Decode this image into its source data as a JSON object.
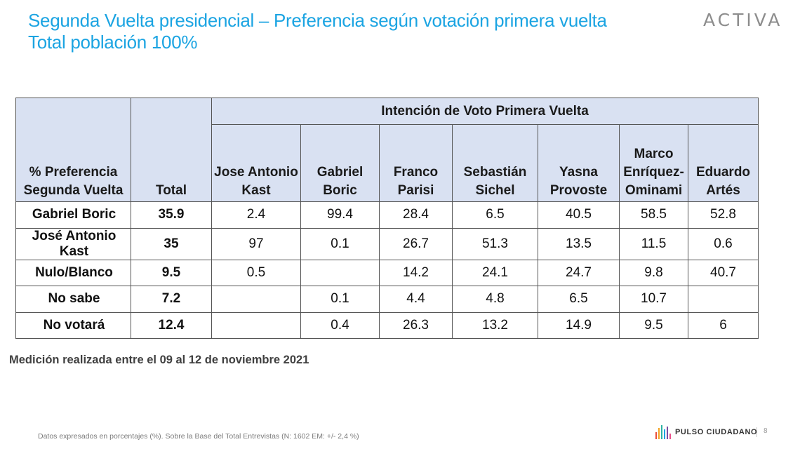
{
  "header": {
    "title_line1": "Segunda Vuelta presidencial – Preferencia según votación primera vuelta",
    "title_line2": "Total población 100%",
    "logo": "ACTIVA"
  },
  "table": {
    "row_header": "% Preferencia Segunda Vuelta",
    "total_header": "Total",
    "group_header": "Intención de Voto Primera Vuelta",
    "columns": [
      {
        "line1": "Jose Antonio",
        "line2": "Kast",
        "line3": ""
      },
      {
        "line1": "Gabriel",
        "line2": "Boric",
        "line3": ""
      },
      {
        "line1": "Franco",
        "line2": "Parisi",
        "line3": ""
      },
      {
        "line1": "Sebastián",
        "line2": "Sichel",
        "line3": ""
      },
      {
        "line1": "Yasna",
        "line2": "Provoste",
        "line3": ""
      },
      {
        "line1": "Marco",
        "line2": "Enríquez-",
        "line3": "Ominami"
      },
      {
        "line1": "Eduardo",
        "line2": "Artés",
        "line3": ""
      }
    ],
    "rows": [
      {
        "label": "Gabriel Boric",
        "total": "35.9",
        "values": [
          "2.4",
          "99.4",
          "28.4",
          "6.5",
          "40.5",
          "58.5",
          "52.8"
        ]
      },
      {
        "label": "José Antonio Kast",
        "total": "35",
        "values": [
          "97",
          "0.1",
          "26.7",
          "51.3",
          "13.5",
          "11.5",
          "0.6"
        ]
      },
      {
        "label": "Nulo/Blanco",
        "total": "9.5",
        "values": [
          "0.5",
          "",
          "14.2",
          "24.1",
          "24.7",
          "9.8",
          "40.7"
        ]
      },
      {
        "label": "No sabe",
        "total": "7.2",
        "values": [
          "",
          "0.1",
          "4.4",
          "4.8",
          "6.5",
          "10.7",
          ""
        ]
      },
      {
        "label": "No votará",
        "total": "12.4",
        "values": [
          "",
          "0.4",
          "26.3",
          "13.2",
          "14.9",
          "9.5",
          "6"
        ]
      }
    ]
  },
  "note": "Medición realizada entre el 09 al 12 de noviembre 2021",
  "footnote": "Datos expresados en porcentajes (%). Sobre la Base del Total Entrevistas (N: 1602  EM: +/- 2,4 %)",
  "footer": {
    "brand": "PULSO CIUDADANO",
    "page": "8",
    "brand_colors": [
      "#e94e3c",
      "#f4a424",
      "#2eb3a4",
      "#1ba4e2",
      "#7a4ea3",
      "#e94e8a"
    ]
  }
}
